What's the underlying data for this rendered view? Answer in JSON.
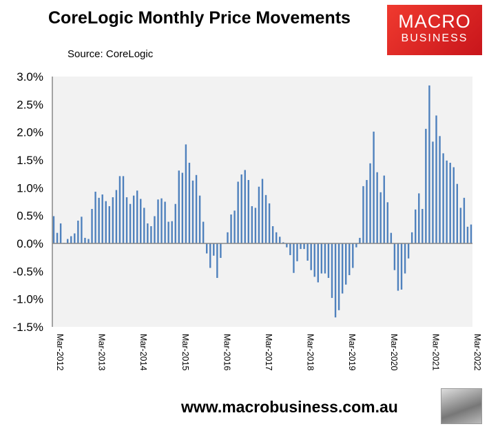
{
  "header": {
    "title": "CoreLogic Monthly Price Movements",
    "source": "Source: CoreLogic"
  },
  "logo": {
    "line1": "MACRO",
    "line2": "BUSINESS",
    "color": "#e5262b"
  },
  "footer": {
    "url": "www.macrobusiness.com.au",
    "wolf_icon": "wolf-logo-icon"
  },
  "chart_data": {
    "type": "bar",
    "title": "CoreLogic Monthly Price Movements",
    "xlabel": "",
    "ylabel": "",
    "ylim": [
      -1.5,
      3.0
    ],
    "y_ticks": [
      "3.0%",
      "2.5%",
      "2.0%",
      "1.5%",
      "1.0%",
      "0.5%",
      "0.0%",
      "-0.5%",
      "-1.0%",
      "-1.5%"
    ],
    "x_tick_labels": [
      "Mar-2012",
      "Mar-2013",
      "Mar-2014",
      "Mar-2015",
      "Mar-2016",
      "Mar-2017",
      "Mar-2018",
      "Mar-2019",
      "Mar-2020",
      "Mar-2021",
      "Mar-2022"
    ],
    "grid": false,
    "bar_color": "#4f81bd",
    "plot_bg": "#f2f2f2",
    "values": [
      0.49,
      0.19,
      0.36,
      0.01,
      0.08,
      0.13,
      0.18,
      0.41,
      0.48,
      0.1,
      0.08,
      0.62,
      0.93,
      0.82,
      0.88,
      0.76,
      0.67,
      0.83,
      0.96,
      1.21,
      1.21,
      0.83,
      0.71,
      0.86,
      0.95,
      0.8,
      0.64,
      0.36,
      0.31,
      0.49,
      0.79,
      0.81,
      0.75,
      0.39,
      0.4,
      0.71,
      1.31,
      1.27,
      1.78,
      1.45,
      1.13,
      1.23,
      0.86,
      0.39,
      -0.18,
      -0.44,
      -0.22,
      -0.62,
      -0.26,
      0.0,
      0.2,
      0.52,
      0.59,
      1.11,
      1.24,
      1.32,
      1.14,
      0.67,
      0.64,
      1.02,
      1.16,
      0.87,
      0.72,
      0.31,
      0.2,
      0.12,
      0.02,
      -0.07,
      -0.21,
      -0.53,
      -0.32,
      -0.1,
      -0.1,
      -0.31,
      -0.48,
      -0.6,
      -0.7,
      -0.54,
      -0.54,
      -0.62,
      -0.98,
      -1.33,
      -1.2,
      -0.9,
      -0.74,
      -0.57,
      -0.44,
      -0.07,
      0.1,
      1.03,
      1.14,
      1.44,
      2.01,
      1.28,
      0.92,
      1.22,
      0.74,
      0.19,
      -0.48,
      -0.85,
      -0.83,
      -0.54,
      -0.27,
      0.2,
      0.61,
      0.9,
      0.62,
      2.06,
      2.84,
      1.83,
      2.3,
      1.93,
      1.62,
      1.49,
      1.45,
      1.37,
      1.07,
      0.64,
      0.82,
      0.3,
      0.34
    ]
  }
}
